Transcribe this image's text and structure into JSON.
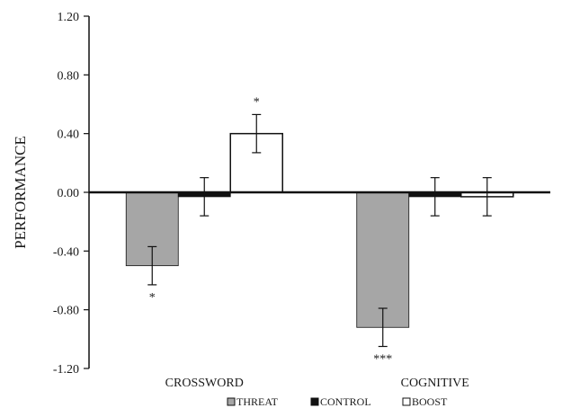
{
  "chart_data": {
    "type": "bar",
    "title": "",
    "xlabel": "",
    "ylabel": "PERFORMANCE",
    "ylim": [
      -1.2,
      1.2
    ],
    "yticks": [
      "1.20",
      "0.80",
      "0.40",
      "0.00",
      "-0.40",
      "-0.80",
      "-1.20"
    ],
    "categories": [
      "CROSSWORD",
      "COGNITIVE"
    ],
    "series": [
      {
        "name": "THREAT",
        "color": "#a6a6a6",
        "values": [
          -0.5,
          -0.92
        ],
        "errors": [
          0.13,
          0.13
        ],
        "significance": [
          "*",
          "***"
        ]
      },
      {
        "name": "CONTROL",
        "color": "#111111",
        "values": [
          -0.03,
          -0.03
        ],
        "errors": [
          0.13,
          0.13
        ],
        "significance": [
          "",
          ""
        ]
      },
      {
        "name": "BOOST",
        "color": "#ffffff",
        "values": [
          0.4,
          -0.03
        ],
        "errors": [
          0.13,
          0.13
        ],
        "significance": [
          "*",
          ""
        ]
      }
    ],
    "legend_position": "bottom",
    "grid": false
  }
}
